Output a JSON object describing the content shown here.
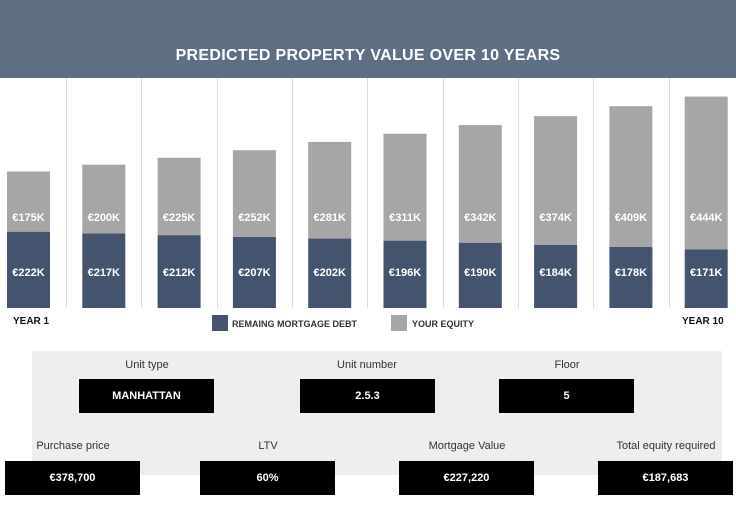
{
  "header": {
    "title": "PREDICTED PROPERTY VALUE OVER 10 YEARS"
  },
  "colors": {
    "debt": "#44546e",
    "equity": "#a6a6a6",
    "header": "#5f6f83",
    "grid": "#d9d9d9"
  },
  "chart_data": {
    "type": "bar",
    "stacked": true,
    "title": "PREDICTED PROPERTY VALUE OVER 10 YEARS",
    "categories": [
      "YEAR 1",
      "",
      "",
      "",
      "",
      "",
      "",
      "",
      "",
      "YEAR 10"
    ],
    "series": [
      {
        "name": "REMAING MORTGAGE DEBT",
        "values": [
          222,
          217,
          212,
          207,
          202,
          196,
          190,
          184,
          178,
          171
        ],
        "labels": [
          "€222K",
          "€217K",
          "€212K",
          "€207K",
          "€202K",
          "€196K",
          "€190K",
          "€184K",
          "€178K",
          "€171K"
        ]
      },
      {
        "name": "YOUR EQUITY",
        "values": [
          175,
          200,
          225,
          252,
          281,
          311,
          342,
          374,
          409,
          444
        ],
        "labels": [
          "€175K",
          "€200K",
          "€225K",
          "€252K",
          "€281K",
          "€311K",
          "€342K",
          "€374K",
          "€409K",
          "€444K"
        ]
      }
    ],
    "grid": true,
    "legend_position": "bottom"
  },
  "info": {
    "unit_type": {
      "label": "Unit type",
      "value": "MANHATTAN"
    },
    "unit_number": {
      "label": "Unit number",
      "value": "2.5.3"
    },
    "floor": {
      "label": "Floor",
      "value": "5"
    },
    "purchase_price": {
      "label": "Purchase price",
      "value": "€378,700"
    },
    "ltv": {
      "label": "LTV",
      "value": "60%"
    },
    "mortgage_value": {
      "label": "Mortgage Value",
      "value": "€227,220"
    },
    "total_equity": {
      "label": "Total equity required",
      "value": "€187,683"
    }
  }
}
